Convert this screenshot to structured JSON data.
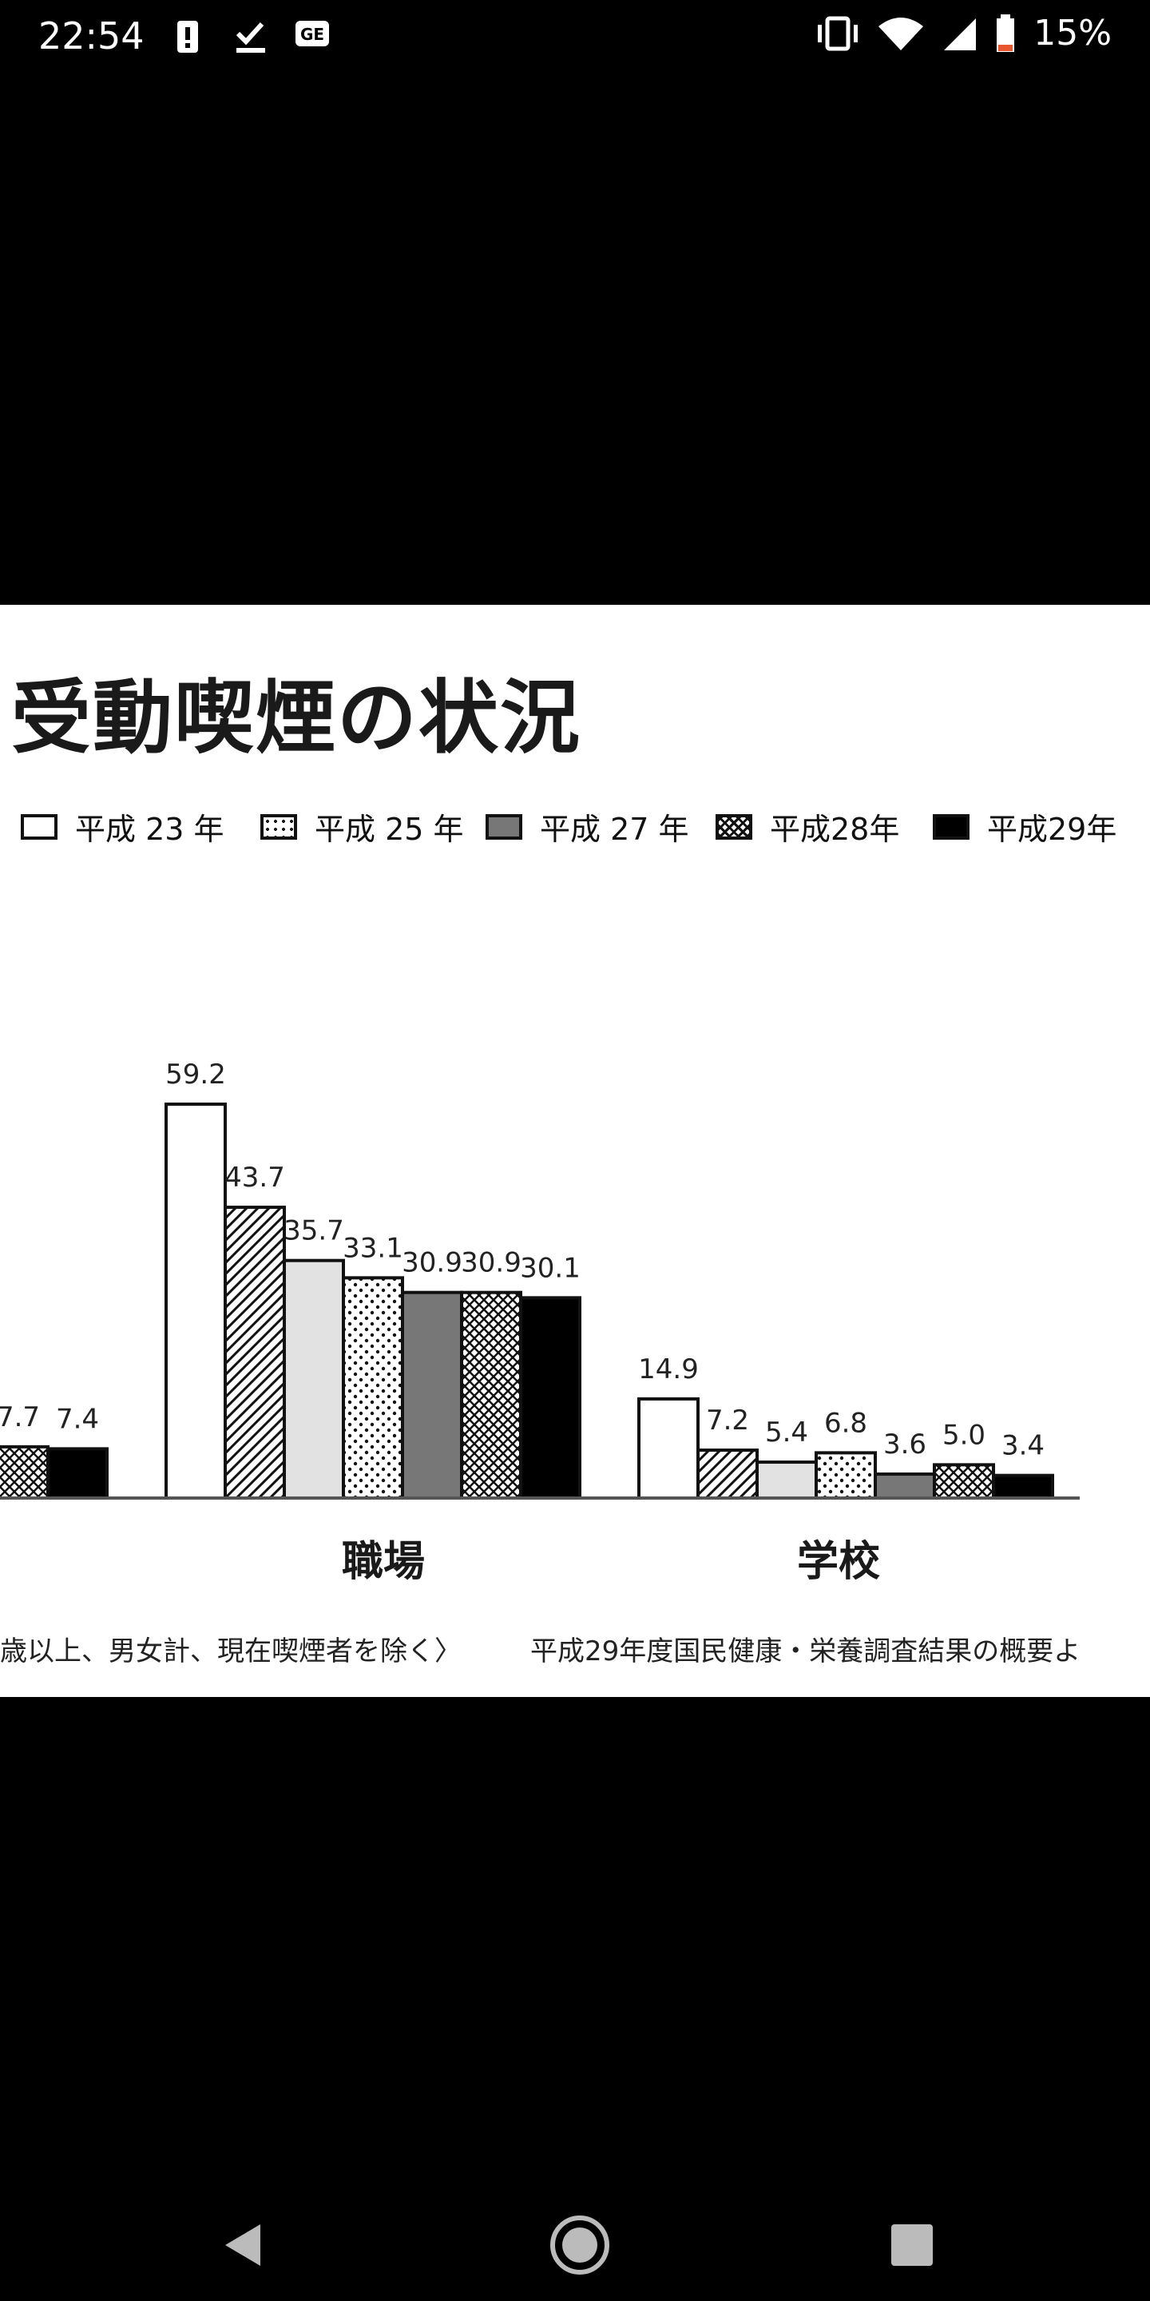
{
  "status_bar": {
    "time": "22:54",
    "battery": "15%",
    "icons_left": [
      "battery-alert-icon",
      "download-done-icon",
      "gtalk-icon"
    ],
    "icons_right": [
      "vibrate-icon",
      "wifi-icon",
      "signal-icon",
      "battery-icon"
    ]
  },
  "colors": {
    "background": "#000000",
    "panel": "#ffffff",
    "bar_outline": "#111111",
    "series_3": "#777777",
    "series_5": "#000000"
  },
  "chart_data": {
    "type": "bar",
    "title": "受動喫煙の状況",
    "categories": [
      "",
      "職場",
      "学校"
    ],
    "series": [
      {
        "name": "平成 23 年",
        "fill": "white",
        "values": [
          null,
          59.2,
          14.9
        ]
      },
      {
        "name": "平成 25 年",
        "fill": "diagonal-hatch",
        "values": [
          null,
          43.7,
          7.2
        ]
      },
      {
        "name": "平成 27 年",
        "fill": "light-gray",
        "values": [
          null,
          35.7,
          5.4
        ]
      },
      {
        "name": "平成 28 年",
        "fill": "dots",
        "values": [
          7.7,
          33.1,
          6.8
        ]
      },
      {
        "name": "平成29年",
        "fill": "black",
        "values": [
          7.4,
          30.9,
          3.6
        ]
      }
    ],
    "extra_bars": {
      "note": "",
      "職場": [
        30.9,
        30.1
      ],
      "学校": [
        5.0,
        3.4
      ]
    },
    "legend": [
      "平成 23 年",
      "平成 25 年",
      "平成 27 年",
      "平成 28 年",
      "平成29年"
    ],
    "legend_placement": "top",
    "labels_partial_left": [
      "7.7",
      "7.4"
    ],
    "grid": false
  },
  "legend": {
    "items": [
      "平成 23 年",
      "平成 25 年",
      "平成 27 年",
      "平成28年",
      "平成29年"
    ]
  },
  "footnote": {
    "left": "歳以上、男女計、現在喫煙者を除く〉",
    "right": "平成29年度国民健康・栄養調査結果の概要よ"
  },
  "nav": {
    "icons": [
      "back-icon",
      "home-icon",
      "recents-icon"
    ]
  }
}
